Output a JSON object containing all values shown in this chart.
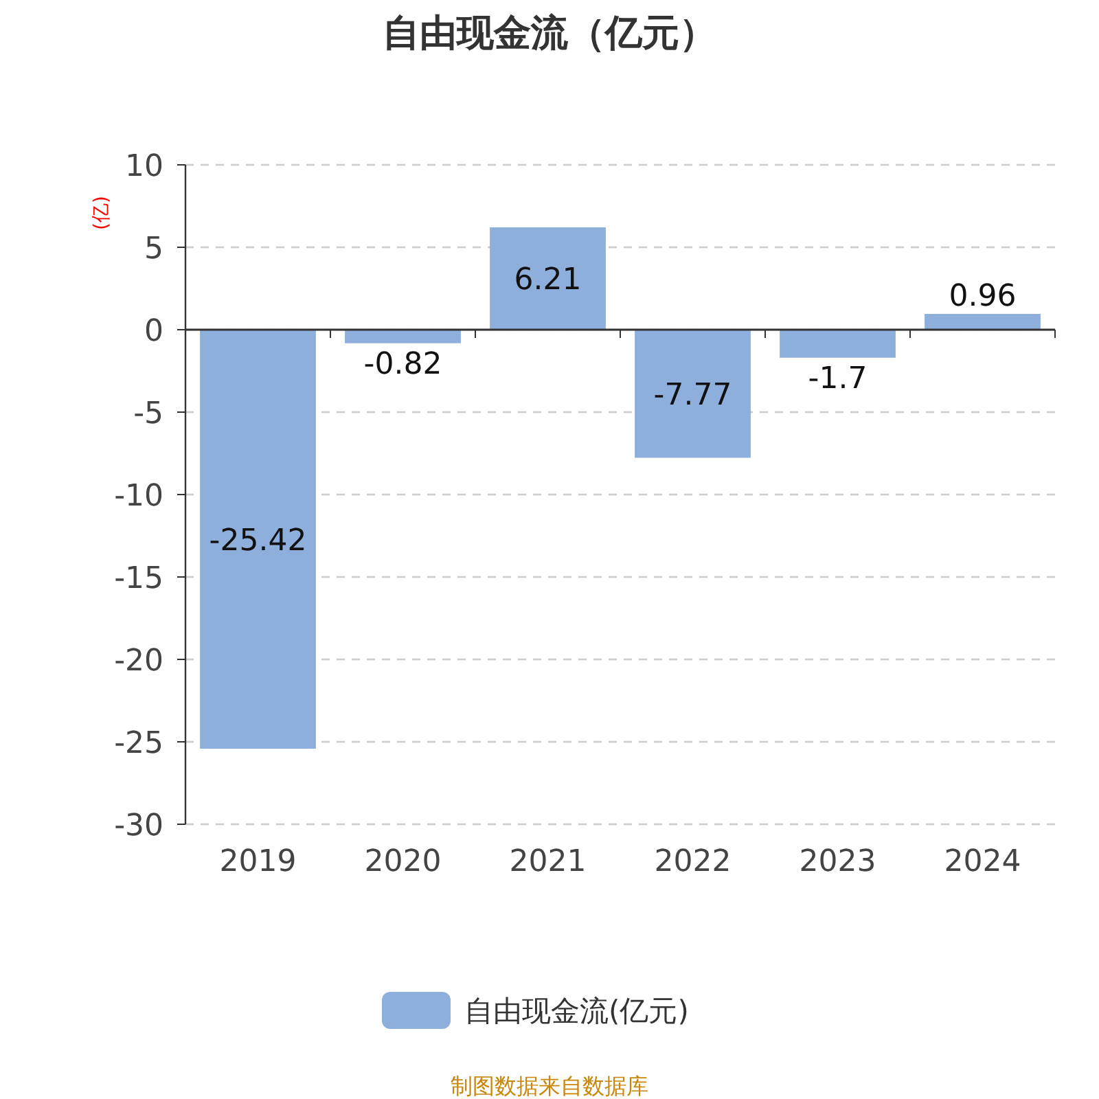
{
  "chart_data": {
    "type": "bar",
    "title": "自由现金流（亿元）",
    "ylabel": "(亿)",
    "categories": [
      "2019",
      "2020",
      "2021",
      "2022",
      "2023",
      "2024"
    ],
    "series": [
      {
        "name": "自由现金流(亿元)",
        "color": "#8eaedb",
        "values": [
          -25.42,
          -0.82,
          6.21,
          -7.77,
          -1.7,
          0.96
        ]
      }
    ],
    "ylim": [
      -30,
      10
    ],
    "yticks": [
      -30,
      -25,
      -20,
      -15,
      -10,
      -5,
      0,
      5,
      10
    ],
    "grid": "y",
    "legend": "bottom",
    "data_labels": true,
    "annotations": [
      "制图数据来自数据库"
    ]
  }
}
